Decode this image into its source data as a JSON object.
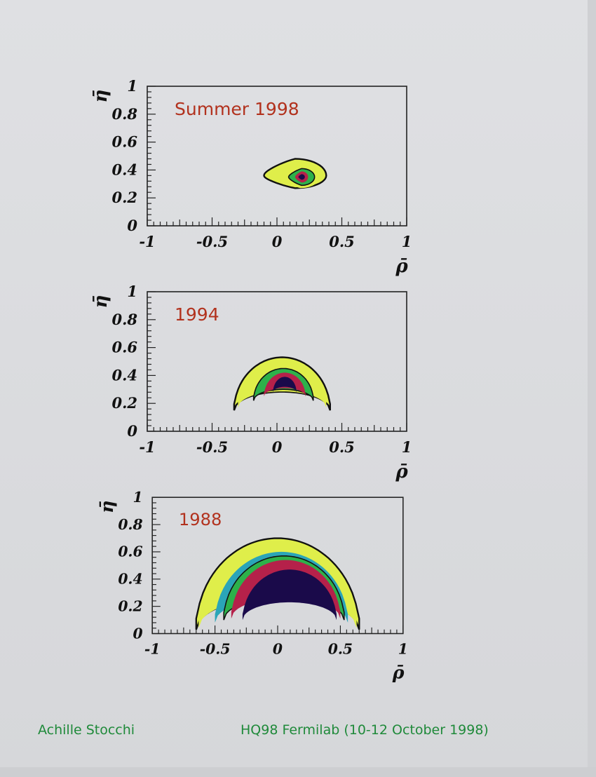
{
  "footer": {
    "author": "Achille Stocchi",
    "conference": "HQ98 Fermilab (10-12 October 1998)"
  },
  "colors": {
    "title_red": "#b2321e",
    "footer_green": "#1f8a3a",
    "contour_outer": "#dfee4a",
    "contour_green": "#2db14a",
    "contour_cyan": "#2aa5b8",
    "contour_red": "#b5214a",
    "contour_core": "#1a0a4a"
  },
  "chart_data": [
    {
      "type": "heatmap",
      "title": "Summer 1998",
      "xlabel": "ρ̄",
      "ylabel": "η̄",
      "xlim": [
        -1,
        1
      ],
      "ylim": [
        0,
        1
      ],
      "x_ticks": [
        "-1",
        "-0.5",
        "0",
        "0.5",
        "1"
      ],
      "y_ticks": [
        "0",
        "0.2",
        "0.4",
        "0.6",
        "0.8",
        "1"
      ],
      "grid": false,
      "contours": [
        {
          "level": "outer",
          "center": [
            0.16,
            0.36
          ],
          "rho_range": [
            -0.1,
            0.38
          ],
          "eta_range": [
            0.27,
            0.48
          ]
        },
        {
          "level": "yellow",
          "center": [
            0.17,
            0.35
          ],
          "rho_range": [
            0.03,
            0.33
          ],
          "eta_range": [
            0.27,
            0.43
          ]
        },
        {
          "level": "green",
          "center": [
            0.19,
            0.35
          ],
          "rho_range": [
            0.09,
            0.29
          ],
          "eta_range": [
            0.29,
            0.41
          ]
        },
        {
          "level": "red",
          "center": [
            0.19,
            0.35
          ],
          "rho_range": [
            0.14,
            0.24
          ],
          "eta_range": [
            0.31,
            0.39
          ]
        },
        {
          "level": "core",
          "center": [
            0.19,
            0.35
          ],
          "rho_range": [
            0.165,
            0.215
          ],
          "eta_range": [
            0.33,
            0.37
          ]
        }
      ]
    },
    {
      "type": "heatmap",
      "title": "1994",
      "xlabel": "ρ̄",
      "ylabel": "η̄",
      "xlim": [
        -1,
        1
      ],
      "ylim": [
        0,
        1
      ],
      "x_ticks": [
        "-1",
        "-0.5",
        "0",
        "0.5",
        "1"
      ],
      "y_ticks": [
        "0",
        "0.2",
        "0.4",
        "0.6",
        "0.8",
        "1"
      ],
      "grid": false,
      "contours": [
        {
          "level": "outer",
          "center": [
            0.06,
            0.34
          ],
          "rho_range": [
            -0.33,
            0.41
          ],
          "eta_range": [
            0.15,
            0.53
          ]
        },
        {
          "level": "yellow",
          "center": [
            0.06,
            0.34
          ],
          "rho_range": [
            -0.3,
            0.38
          ],
          "eta_range": [
            0.17,
            0.5
          ]
        },
        {
          "level": "green",
          "center": [
            0.07,
            0.34
          ],
          "rho_range": [
            -0.18,
            0.28
          ],
          "eta_range": [
            0.22,
            0.45
          ]
        },
        {
          "level": "red",
          "center": [
            0.07,
            0.34
          ],
          "rho_range": [
            -0.1,
            0.22
          ],
          "eta_range": [
            0.25,
            0.42
          ]
        },
        {
          "level": "core",
          "center": [
            0.07,
            0.34
          ],
          "rho_range": [
            -0.03,
            0.15
          ],
          "eta_range": [
            0.28,
            0.39
          ]
        }
      ]
    },
    {
      "type": "heatmap",
      "title": "1988",
      "xlabel": "ρ̄",
      "ylabel": "η̄",
      "xlim": [
        -1,
        1
      ],
      "ylim": [
        0,
        1
      ],
      "x_ticks": [
        "-1",
        "-0.5",
        "0",
        "0.5",
        "1"
      ],
      "y_ticks": [
        "0",
        "0.2",
        "0.4",
        "0.6",
        "0.8",
        "1"
      ],
      "grid": false,
      "contours": [
        {
          "level": "outer",
          "center": [
            0.0,
            0.35
          ],
          "rho_range": [
            -0.65,
            0.65
          ],
          "eta_range": [
            0.03,
            0.7
          ]
        },
        {
          "level": "yellow",
          "center": [
            0.0,
            0.35
          ],
          "rho_range": [
            -0.63,
            0.63
          ],
          "eta_range": [
            0.04,
            0.68
          ]
        },
        {
          "level": "cyan",
          "center": [
            0.02,
            0.34
          ],
          "rho_range": [
            -0.5,
            0.56
          ],
          "eta_range": [
            0.08,
            0.6
          ]
        },
        {
          "level": "green",
          "center": [
            0.02,
            0.33
          ],
          "rho_range": [
            -0.43,
            0.53
          ],
          "eta_range": [
            0.1,
            0.57
          ]
        },
        {
          "level": "red",
          "center": [
            0.04,
            0.32
          ],
          "rho_range": [
            -0.37,
            0.5
          ],
          "eta_range": [
            0.11,
            0.54
          ]
        },
        {
          "level": "core",
          "center": [
            0.1,
            0.32
          ],
          "rho_range": [
            -0.28,
            0.47
          ],
          "eta_range": [
            0.1,
            0.47
          ]
        }
      ]
    }
  ]
}
